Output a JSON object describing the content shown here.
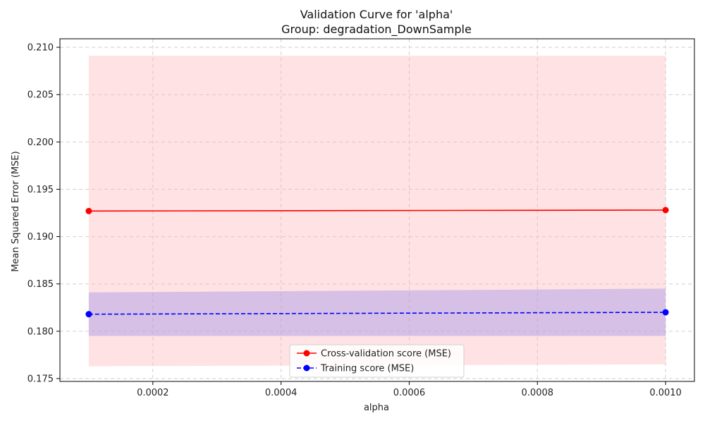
{
  "chart_data": {
    "type": "line",
    "title": "Validation Curve for 'alpha'",
    "subtitle": "Group: degradation_DownSample",
    "xlabel": "alpha",
    "ylabel": "Mean Squared Error (MSE)",
    "xlim": [
      5.5e-05,
      0.001045
    ],
    "ylim": [
      0.1747,
      0.2109
    ],
    "x_ticks": [
      0.0002,
      0.0004,
      0.0006,
      0.0008,
      0.001
    ],
    "x_tick_labels": [
      "0.0002",
      "0.0004",
      "0.0006",
      "0.0008",
      "0.0010"
    ],
    "y_ticks": [
      0.175,
      0.18,
      0.185,
      0.19,
      0.195,
      0.2,
      0.205,
      0.21
    ],
    "y_tick_labels": [
      "0.175",
      "0.180",
      "0.185",
      "0.190",
      "0.195",
      "0.200",
      "0.205",
      "0.210"
    ],
    "grid": true,
    "legend_position": "lower-center",
    "x": [
      0.0001,
      0.001
    ],
    "series": [
      {
        "name": "Cross-validation score (MSE)",
        "values": [
          0.1927,
          0.1928
        ],
        "band_upper": [
          0.2091,
          0.2091
        ],
        "band_lower": [
          0.1763,
          0.1765
        ],
        "color": "#ff0000",
        "band_color": "#ffb6b9",
        "line_style": "solid"
      },
      {
        "name": "Training score (MSE)",
        "values": [
          0.1818,
          0.182
        ],
        "band_upper": [
          0.1841,
          0.1845
        ],
        "band_lower": [
          0.1795,
          0.1795
        ],
        "color": "#0000ff",
        "band_color": "#9b8fe8",
        "line_style": "dashed"
      }
    ]
  }
}
